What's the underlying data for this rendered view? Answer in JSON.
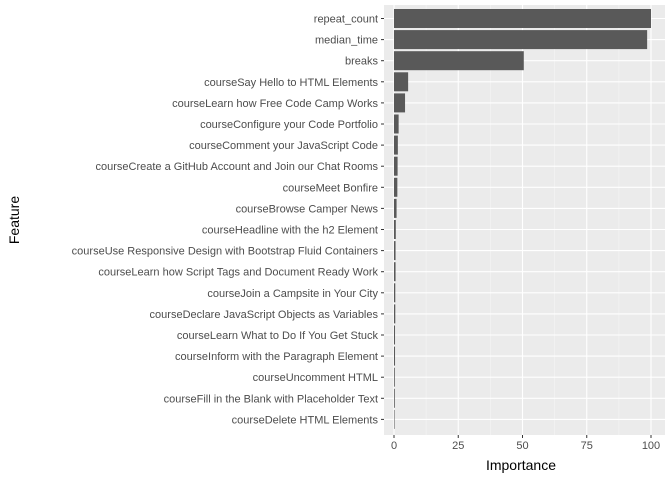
{
  "chart_data": {
    "type": "bar",
    "orientation": "horizontal",
    "xlabel": "Importance",
    "ylabel": "Feature",
    "xlim": [
      0,
      100
    ],
    "xticks": [
      0,
      25,
      50,
      75,
      100
    ],
    "grid": true,
    "categories": [
      "repeat_count",
      "median_time",
      "breaks",
      "courseSay Hello to HTML Elements",
      "courseLearn how Free Code Camp Works",
      "courseConfigure your Code Portfolio",
      "courseComment your JavaScript Code",
      "courseCreate a GitHub Account and Join our Chat Rooms",
      "courseMeet Bonfire",
      "courseBrowse Camper News",
      "courseHeadline with the h2 Element",
      "courseUse Responsive Design with Bootstrap Fluid Containers",
      "courseLearn how Script Tags and Document Ready Work",
      "courseJoin a Campsite in Your City",
      "courseDeclare JavaScript Objects as Variables",
      "courseLearn What to Do If You Get Stuck",
      "courseInform with the Paragraph Element",
      "courseUncomment HTML",
      "courseFill in the Blank with Placeholder Text",
      "courseDelete HTML Elements"
    ],
    "values": [
      100,
      98.5,
      50.5,
      5.5,
      4.3,
      1.8,
      1.5,
      1.4,
      1.3,
      1.0,
      0.7,
      0.6,
      0.6,
      0.5,
      0.5,
      0.4,
      0.4,
      0.3,
      0.3,
      0.2
    ],
    "colors": {
      "bar": "#595959",
      "panel": "#ebebeb",
      "grid_major": "#ffffff",
      "grid_minor": "#f5f5f5",
      "tick_text": "#4d4d4d"
    }
  }
}
